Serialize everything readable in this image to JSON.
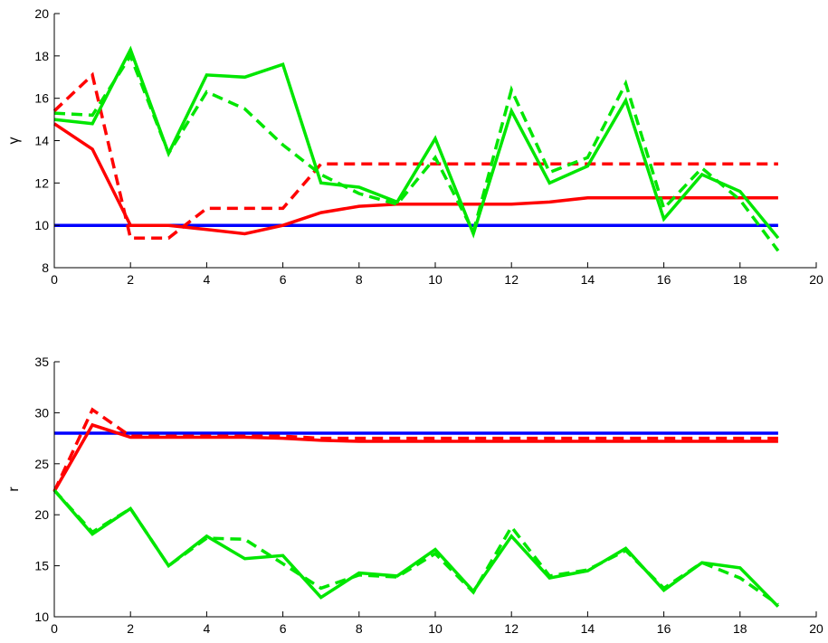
{
  "chart_data": [
    {
      "type": "line",
      "ylabel": "γ",
      "xlim": [
        0,
        20
      ],
      "ylim": [
        8,
        20
      ],
      "xticks": [
        0,
        2,
        4,
        6,
        8,
        10,
        12,
        14,
        16,
        18,
        20
      ],
      "yticks": [
        8,
        10,
        12,
        14,
        16,
        18,
        20
      ],
      "grid": false,
      "series": [
        {
          "color": "#0000ff",
          "style": "solid",
          "x": [
            0,
            19
          ],
          "y": [
            10.0,
            10.0
          ]
        },
        {
          "color": "#ff0000",
          "style": "solid",
          "x": [
            0,
            1,
            2,
            3,
            4,
            5,
            6,
            7,
            8,
            9,
            10,
            11,
            12,
            13,
            14,
            15,
            16,
            17,
            18,
            19
          ],
          "y": [
            14.8,
            13.6,
            10.0,
            10.0,
            9.8,
            9.6,
            10.0,
            10.6,
            10.9,
            11.0,
            11.0,
            11.0,
            11.0,
            11.1,
            11.3,
            11.3,
            11.3,
            11.3,
            11.3,
            11.3
          ]
        },
        {
          "color": "#ff0000",
          "style": "dashed",
          "x": [
            0,
            1,
            2,
            3,
            4,
            5,
            6,
            7,
            8,
            9,
            10,
            11,
            12,
            13,
            14,
            15,
            16,
            17,
            18,
            19
          ],
          "y": [
            15.4,
            17.1,
            9.4,
            9.4,
            10.8,
            10.8,
            10.8,
            12.9,
            12.9,
            12.9,
            12.9,
            12.9,
            12.9,
            12.9,
            12.9,
            12.9,
            12.9,
            12.9,
            12.9,
            12.9
          ]
        },
        {
          "color": "#00e600",
          "style": "solid",
          "x": [
            0,
            1,
            2,
            3,
            4,
            5,
            6,
            7,
            8,
            9,
            10,
            11,
            12,
            13,
            14,
            15,
            16,
            17,
            18,
            19
          ],
          "y": [
            15.0,
            14.8,
            18.3,
            13.4,
            17.1,
            17.0,
            17.6,
            12.0,
            11.8,
            11.1,
            14.1,
            9.6,
            15.4,
            12.0,
            12.8,
            15.9,
            10.3,
            12.4,
            11.6,
            9.4
          ]
        },
        {
          "color": "#00e600",
          "style": "dashed",
          "x": [
            0,
            1,
            2,
            3,
            4,
            5,
            6,
            7,
            8,
            9,
            10,
            11,
            12,
            13,
            14,
            15,
            16,
            17,
            18,
            19
          ],
          "y": [
            15.3,
            15.2,
            18.0,
            13.4,
            16.3,
            15.5,
            13.8,
            12.4,
            11.5,
            11.0,
            13.2,
            9.7,
            16.4,
            12.5,
            13.2,
            16.7,
            10.8,
            12.7,
            11.2,
            8.8
          ]
        }
      ]
    },
    {
      "type": "line",
      "ylabel": "r",
      "xlim": [
        0,
        20
      ],
      "ylim": [
        10,
        35
      ],
      "xticks": [
        0,
        2,
        4,
        6,
        8,
        10,
        12,
        14,
        16,
        18,
        20
      ],
      "yticks": [
        10,
        15,
        20,
        25,
        30,
        35
      ],
      "grid": false,
      "series": [
        {
          "color": "#0000ff",
          "style": "solid",
          "x": [
            0,
            19
          ],
          "y": [
            28.0,
            28.0
          ]
        },
        {
          "color": "#ff0000",
          "style": "solid",
          "x": [
            0,
            1,
            2,
            3,
            4,
            5,
            6,
            7,
            8,
            9,
            10,
            11,
            12,
            13,
            14,
            15,
            16,
            17,
            18,
            19
          ],
          "y": [
            22.3,
            28.8,
            27.6,
            27.6,
            27.6,
            27.6,
            27.5,
            27.3,
            27.2,
            27.2,
            27.2,
            27.2,
            27.2,
            27.2,
            27.2,
            27.2,
            27.2,
            27.2,
            27.2,
            27.2
          ]
        },
        {
          "color": "#ff0000",
          "style": "dashed",
          "x": [
            0,
            1,
            2,
            3,
            4,
            5,
            6,
            7,
            8,
            9,
            10,
            11,
            12,
            13,
            14,
            15,
            16,
            17,
            18,
            19
          ],
          "y": [
            22.3,
            30.3,
            27.7,
            27.7,
            27.7,
            27.7,
            27.7,
            27.5,
            27.5,
            27.5,
            27.5,
            27.5,
            27.5,
            27.5,
            27.5,
            27.5,
            27.5,
            27.5,
            27.5,
            27.5
          ]
        },
        {
          "color": "#00e600",
          "style": "solid",
          "x": [
            0,
            1,
            2,
            3,
            4,
            5,
            6,
            7,
            8,
            9,
            10,
            11,
            12,
            13,
            14,
            15,
            16,
            17,
            18,
            19
          ],
          "y": [
            22.4,
            18.1,
            20.6,
            15.0,
            17.9,
            15.7,
            16.0,
            11.9,
            14.3,
            14.0,
            16.6,
            12.5,
            17.9,
            13.8,
            14.5,
            16.7,
            12.6,
            15.3,
            14.8,
            11.0
          ]
        },
        {
          "color": "#00e600",
          "style": "dashed",
          "x": [
            0,
            1,
            2,
            3,
            4,
            5,
            6,
            7,
            8,
            9,
            10,
            11,
            12,
            13,
            14,
            15,
            16,
            17,
            18,
            19
          ],
          "y": [
            22.4,
            18.3,
            20.6,
            15.0,
            17.7,
            17.6,
            15.2,
            12.8,
            14.1,
            13.9,
            16.2,
            12.4,
            18.8,
            14.0,
            14.6,
            16.5,
            12.8,
            15.3,
            13.8,
            11.2
          ]
        }
      ]
    }
  ]
}
